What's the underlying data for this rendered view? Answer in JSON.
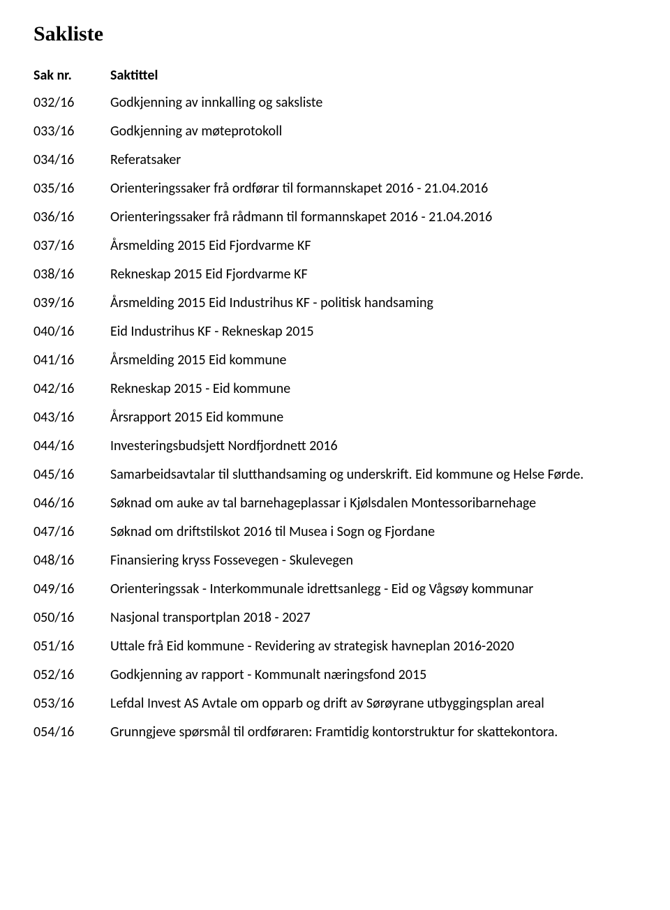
{
  "page": {
    "title": "Sakliste",
    "background_color": "#ffffff",
    "text_color": "#000000",
    "body_font": "Calibri",
    "title_font": "Times New Roman",
    "title_fontsize": 30,
    "body_fontsize": 20
  },
  "table": {
    "headers": {
      "col1": "Sak nr.",
      "col2": "Saktittel"
    },
    "rows": [
      {
        "num": "032/16",
        "title": "Godkjenning av innkalling og saksliste"
      },
      {
        "num": "033/16",
        "title": "Godkjenning av møteprotokoll"
      },
      {
        "num": "034/16",
        "title": "Referatsaker"
      },
      {
        "num": "035/16",
        "title": "Orienteringssaker frå ordførar til formannskapet 2016 - 21.04.2016"
      },
      {
        "num": "036/16",
        "title": "Orienteringssaker frå rådmann til formannskapet 2016 - 21.04.2016"
      },
      {
        "num": "037/16",
        "title": "Årsmelding 2015 Eid Fjordvarme KF"
      },
      {
        "num": "038/16",
        "title": "Rekneskap 2015 Eid Fjordvarme KF"
      },
      {
        "num": "039/16",
        "title": "Årsmelding 2015 Eid Industrihus KF - politisk handsaming"
      },
      {
        "num": "040/16",
        "title": "Eid Industrihus KF - Rekneskap 2015"
      },
      {
        "num": "041/16",
        "title": "Årsmelding 2015 Eid kommune"
      },
      {
        "num": "042/16",
        "title": "Rekneskap 2015 - Eid kommune"
      },
      {
        "num": "043/16",
        "title": "Årsrapport 2015 Eid kommune"
      },
      {
        "num": "044/16",
        "title": "Investeringsbudsjett Nordfjordnett 2016"
      },
      {
        "num": "045/16",
        "title": "Samarbeidsavtalar til slutthandsaming og underskrift. Eid kommune og Helse Førde."
      },
      {
        "num": "046/16",
        "title": "Søknad om auke av tal barnehageplassar i Kjølsdalen Montessoribarnehage"
      },
      {
        "num": "047/16",
        "title": "Søknad om driftstilskot 2016 til Musea i Sogn og Fjordane"
      },
      {
        "num": "048/16",
        "title": "Finansiering kryss Fossevegen - Skulevegen"
      },
      {
        "num": "049/16",
        "title": "Orienteringssak - Interkommunale  idrettsanlegg - Eid og Vågsøy kommunar"
      },
      {
        "num": "050/16",
        "title": "Nasjonal transportplan 2018 - 2027"
      },
      {
        "num": "051/16",
        "title": "Uttale frå Eid kommune - Revidering av strategisk havneplan 2016-2020"
      },
      {
        "num": "052/16",
        "title": "Godkjenning av rapport - Kommunalt næringsfond 2015"
      },
      {
        "num": "053/16",
        "title": "Lefdal Invest AS Avtale om opparb og drift av Sørøyrane utbyggingsplan areal"
      },
      {
        "num": "054/16",
        "title": "Grunngjeve spørsmål til ordføraren: Framtidig kontorstruktur for skattekontora."
      }
    ]
  }
}
